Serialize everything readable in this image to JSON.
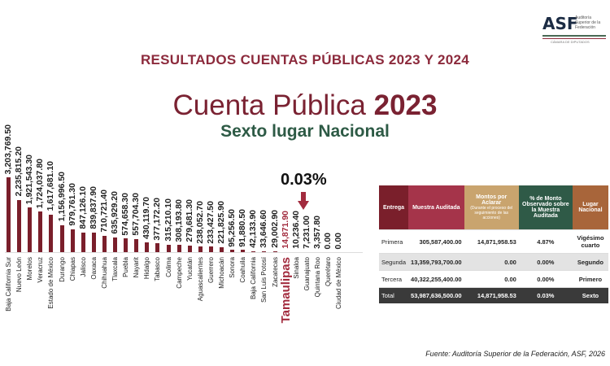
{
  "header": {
    "title": "RESULTADOS CUENTAS PÚBLICAS 2023 Y 2024",
    "subtitle_prefix": "Cuenta Pública",
    "subtitle_year": "2023",
    "ranking": "Sexto lugar Nacional"
  },
  "logo": {
    "text": "ASF",
    "name": "Auditoría Superior de la Federación",
    "tagline": "CÁMARA DE DIPUTADOS"
  },
  "highlight": {
    "percent": "0.03%",
    "state": "Tamaulipas",
    "color": "#a22b3e"
  },
  "chart_data": {
    "type": "bar",
    "color": "#7a1f2b",
    "categories": [
      "Baja California Sur",
      "Nuevo León",
      "Morelos",
      "Veracruz",
      "Estado de México",
      "Durango",
      "Chiapas",
      "Jalisco",
      "Oaxaca",
      "Chihuahua",
      "Tlaxcala",
      "Puebla",
      "Nayarit",
      "Hidalgo",
      "Tabasco",
      "Colima",
      "Campeche",
      "Yucatán",
      "Aguascalientes",
      "Guerrero",
      "Michoacán",
      "Sonora",
      "Coahuila",
      "Baja California",
      "San Luis Potosí",
      "Zacatecas",
      "Tamaulipas",
      "Sinaloa",
      "Guanajuato",
      "Quintana Roo",
      "Querétaro",
      "Ciudad de México"
    ],
    "values": [
      3203769.5,
      2235815.2,
      1921543.3,
      1724037.8,
      1617681.1,
      1156996.5,
      979761.3,
      847126.1,
      839837.9,
      710721.4,
      635929.2,
      574658.3,
      557704.3,
      430119.7,
      377172.2,
      315210.1,
      308193.8,
      279681.3,
      238052.7,
      233427.5,
      221825.9,
      95256.5,
      91880.5,
      42133.9,
      33646.6,
      29002.9,
      14871.9,
      10236.4,
      7231.0,
      3357.8,
      0.0,
      0.0
    ],
    "labels": [
      "3,203,769.50",
      "2,235,815.20",
      "1,921,543.30",
      "1,724,037.80",
      "1,617,681.10",
      "1,156,996.50",
      "979,761.30",
      "847,126.10",
      "839,837.90",
      "710,721.40",
      "635,929.20",
      "574,658.30",
      "557,704.30",
      "430,119.70",
      "377,172.20",
      "315,210.10",
      "308,193.80",
      "279,681.30",
      "238,052.70",
      "233,427.50",
      "221,825.90",
      "95,256.50",
      "91,880.50",
      "42,133.90",
      "33,646.60",
      "29,002.90",
      "14,871.90",
      "10,236.40",
      "7,231.00",
      "3,357.80",
      "0.00",
      "0.00"
    ],
    "highlight_index": 26,
    "grid": false
  },
  "table": {
    "headers": [
      "Entrega",
      "Muestra Auditada",
      "Montos por Aclarar",
      "% de Monto Observado sobre la Muestra Auditada",
      "Lugar Nacional"
    ],
    "header_note": "(Durante el proceso del seguimiento de las acciones)",
    "header_colors": [
      "#7a1f2b",
      "#a5344a",
      "#c9a46e",
      "#2f5a47",
      "#a8653a"
    ],
    "rows": [
      [
        "Primera",
        "305,587,400.00",
        "14,871,958.53",
        "4.87%",
        "Vigésimo cuarto"
      ],
      [
        "Segunda",
        "13,359,793,700.00",
        "0.00",
        "0.00%",
        "Segundo"
      ],
      [
        "Tercera",
        "40,322,255,400.00",
        "0.00",
        "0.00%",
        "Primero"
      ]
    ],
    "total": [
      "Total",
      "53,987,636,500.00",
      "14,871,958.53",
      "0.03%",
      "Sexto"
    ]
  },
  "source": "Fuente: Auditoría Superior de la Federación, ASF, 2026"
}
